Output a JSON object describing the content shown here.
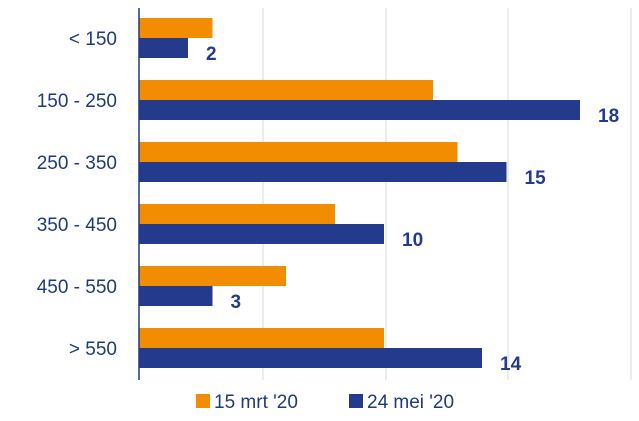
{
  "chart_data": {
    "type": "bar",
    "orientation": "horizontal",
    "categories": [
      "< 150",
      "150 - 250",
      "250 - 350",
      "350 - 450",
      "450 - 550",
      "> 550"
    ],
    "series": [
      {
        "name": "15 mrt '20",
        "color": "#f28c00",
        "values": [
          3,
          12,
          13,
          8,
          6,
          10
        ]
      },
      {
        "name": "24 mei '20",
        "color": "#243a8c",
        "values": [
          2,
          18,
          15,
          10,
          3,
          14
        ]
      }
    ],
    "data_labels": [
      "2",
      "18",
      "15",
      "10",
      "3",
      "14"
    ],
    "xlim": [
      0,
      20
    ],
    "grid": true,
    "legend_position": "bottom"
  }
}
